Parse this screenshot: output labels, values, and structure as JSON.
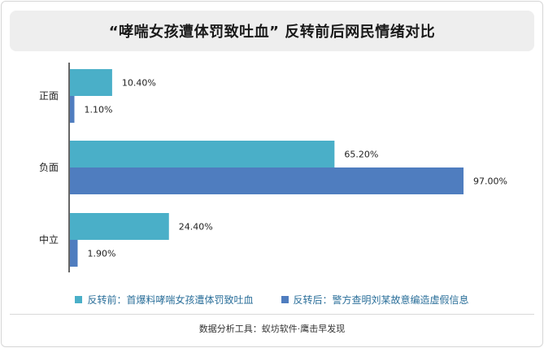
{
  "title": "“哮喘女孩遭体罚致吐血” 反转前后网民情绪对比",
  "source": "数据分析工具：蚁坊软件·鹰击早发现",
  "colors": {
    "before": "#4aafc8",
    "after": "#4f7dbf"
  },
  "chart_data": {
    "type": "bar",
    "orientation": "horizontal",
    "title": "“哮喘女孩遭体罚致吐血” 反转前后网民情绪对比",
    "categories": [
      "正面",
      "负面",
      "中立"
    ],
    "series": [
      {
        "name": "反转前：首爆料哮喘女孩遭体罚致吐血",
        "values": [
          10.4,
          65.2,
          24.4
        ],
        "labels": [
          "10.40%",
          "65.20%",
          "24.40%"
        ]
      },
      {
        "name": "反转后：警方查明刘某故意编造虚假信息",
        "values": [
          1.1,
          97.0,
          1.9
        ],
        "labels": [
          "1.10%",
          "97.00%",
          "1.90%"
        ]
      }
    ],
    "xlim": [
      0,
      100
    ],
    "grid": false,
    "legend_position": "bottom"
  }
}
